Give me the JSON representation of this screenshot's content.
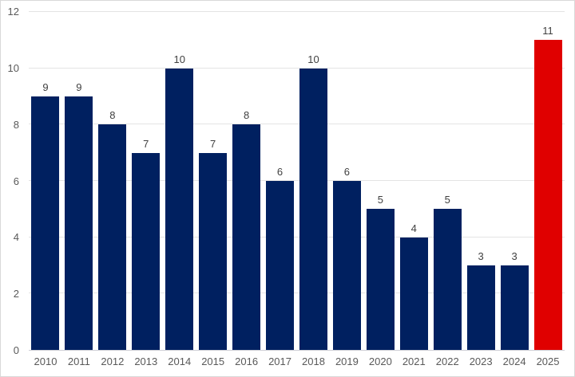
{
  "chart_data": {
    "type": "bar",
    "title": "",
    "xlabel": "",
    "ylabel": "",
    "categories": [
      "2010",
      "2011",
      "2012",
      "2013",
      "2014",
      "2015",
      "2016",
      "2017",
      "2018",
      "2019",
      "2020",
      "2021",
      "2022",
      "2023",
      "2024",
      "2025"
    ],
    "values": [
      9,
      9,
      8,
      7,
      10,
      7,
      8,
      6,
      10,
      6,
      5,
      4,
      5,
      3,
      3,
      11
    ],
    "data_labels": [
      "9",
      "9",
      "8",
      "7",
      "10",
      "7",
      "8",
      "6",
      "10",
      "6",
      "5",
      "4",
      "5",
      "3",
      "3",
      "11"
    ],
    "ylim": [
      0,
      12
    ],
    "yticks": [
      0,
      2,
      4,
      6,
      8,
      10,
      12
    ],
    "grid": true,
    "legend": false,
    "bar_color": "#002060",
    "highlight_index": 15,
    "highlight_color": "#e00000"
  },
  "colors": {
    "background": "#ffffff",
    "border": "#d9d9d9",
    "gridline": "#e4e4e4",
    "axis_line": "#cfcfd6",
    "tick_label": "#595959",
    "data_label": "#404040"
  }
}
